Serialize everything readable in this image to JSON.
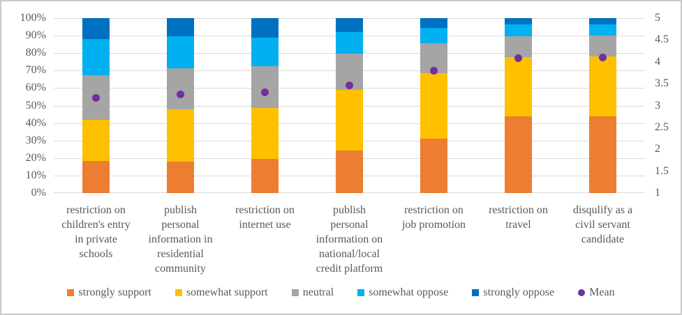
{
  "chart_data": {
    "type": "bar",
    "subtype": "stacked-100-percent-with-mean-scatter",
    "title": "",
    "xlabel": "",
    "ylabel": "",
    "grid": true,
    "legend_position": "bottom",
    "categories": [
      "restriction on children's entry in private schools",
      "publish personal information in residential community",
      "restriction on internet use",
      "publish personal information on national/local credit platform",
      "restriction on job promotion",
      "restriction on travel",
      "disqulify as a civil servant candidate"
    ],
    "category_lines": [
      [
        "restriction on",
        "children's entry",
        "in private",
        "schools"
      ],
      [
        "publish",
        "personal",
        "information in",
        "residential",
        "community"
      ],
      [
        "restriction on",
        "internet use"
      ],
      [
        "publish",
        "personal",
        "information on",
        "national/local",
        "credit platform"
      ],
      [
        "restriction on",
        "job promotion"
      ],
      [
        "restriction on",
        "travel"
      ],
      [
        "disqulify as a",
        "civil servant",
        "candidate"
      ]
    ],
    "series": [
      {
        "name": "strongly support",
        "color": "#ED7D31",
        "values": [
          18.5,
          18.0,
          19.5,
          24.5,
          31.0,
          44.0,
          44.0
        ]
      },
      {
        "name": "somewhat support",
        "color": "#FFC000",
        "values": [
          23.5,
          30.0,
          29.0,
          34.5,
          37.5,
          33.5,
          34.0
        ]
      },
      {
        "name": "neutral",
        "color": "#A5A5A5",
        "values": [
          25.5,
          23.5,
          24.0,
          20.5,
          17.0,
          12.0,
          12.0
        ]
      },
      {
        "name": "somewhat oppose",
        "color": "#00B0F0",
        "values": [
          20.5,
          18.0,
          16.5,
          12.5,
          9.0,
          7.0,
          6.5
        ]
      },
      {
        "name": "strongly oppose",
        "color": "#0070C0",
        "values": [
          12.0,
          10.5,
          11.0,
          8.0,
          5.5,
          3.5,
          3.5
        ]
      }
    ],
    "mean_series": {
      "name": "Mean",
      "color": "#7030A0",
      "axis": "secondary",
      "values": [
        3.17,
        3.26,
        3.3,
        3.47,
        3.79,
        4.08,
        4.1
      ]
    },
    "primary_axis": {
      "ticks": [
        "0%",
        "10%",
        "20%",
        "30%",
        "40%",
        "50%",
        "60%",
        "70%",
        "80%",
        "90%",
        "100%"
      ],
      "min": 0,
      "max": 100
    },
    "secondary_axis": {
      "ticks": [
        "1",
        "1.5",
        "2",
        "2.5",
        "3",
        "3.5",
        "4",
        "4.5",
        "5"
      ],
      "min": 1,
      "max": 5
    },
    "legend": [
      "strongly support",
      "somewhat support",
      "neutral",
      "somewhat oppose",
      "strongly oppose",
      "Mean"
    ]
  },
  "style": {
    "gridline_color": "#d9d9d9",
    "text_color": "#595959",
    "background": "#ffffff",
    "frame_border": "#c9c9c9"
  }
}
